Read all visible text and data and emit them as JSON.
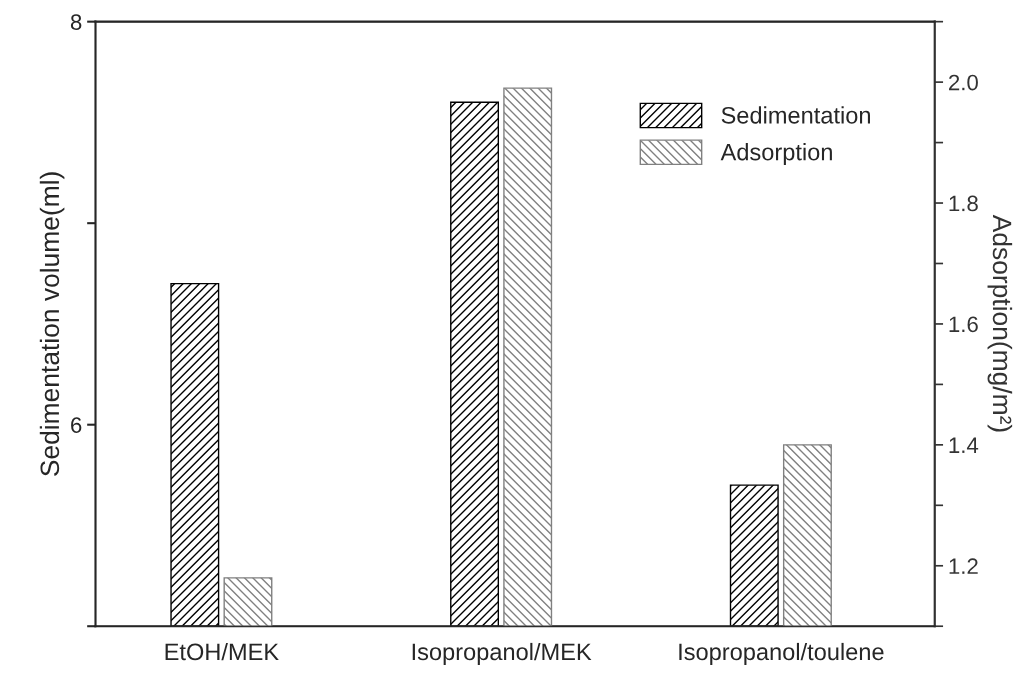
{
  "chart_data": {
    "type": "bar",
    "categories": [
      "EtOH/MEK",
      "Isopropanol/MEK",
      "Isopropanol/toulene"
    ],
    "ylabel": "Sedimentation volume(ml)",
    "y2label": "Adsorption(mg/m²)",
    "series": [
      {
        "name": "Sedimentation",
        "color": "#000000",
        "values": [
          6.7,
          7.6,
          5.7
        ]
      },
      {
        "name": "Adsorption",
        "color": "#808080",
        "values": [
          1.18,
          1.99,
          1.4
        ],
        "axis": "y2"
      }
    ],
    "ylim": [
      5,
      8
    ],
    "yticks": [
      {
        "value": 5,
        "label": null
      },
      6,
      {
        "value": 7,
        "label": null
      },
      8
    ],
    "y2lim": [
      1.1,
      2.1
    ],
    "y2ticks": [
      {
        "value": 1.1,
        "label": null
      },
      {
        "value": 1.2,
        "label": "1.2"
      },
      {
        "value": 1.3,
        "label": null
      },
      {
        "value": 1.4,
        "label": "1.4"
      },
      {
        "value": 1.5,
        "label": null
      },
      {
        "value": 1.6,
        "label": "1.6"
      },
      {
        "value": 1.7,
        "label": null
      },
      {
        "value": 1.8,
        "label": "1.8"
      },
      {
        "value": 1.9,
        "label": null
      },
      {
        "value": 2.0,
        "label": "2.0"
      },
      {
        "value": 2.1,
        "label": null
      }
    ],
    "legend": "top right",
    "grid": false
  }
}
